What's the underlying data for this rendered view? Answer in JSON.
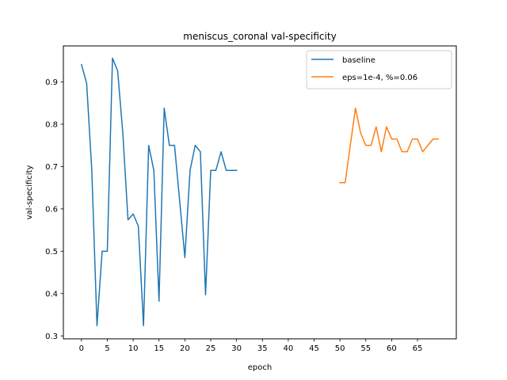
{
  "chart_data": {
    "type": "line",
    "title": "meniscus_coronal val-specificity",
    "xlabel": "epoch",
    "ylabel": "val-specificity",
    "xlim": [
      -3.5,
      72.5
    ],
    "ylim": [
      0.293,
      0.985
    ],
    "xticks": [
      0,
      5,
      10,
      15,
      20,
      25,
      30,
      35,
      40,
      45,
      50,
      55,
      60,
      65
    ],
    "yticks": [
      0.3,
      0.4,
      0.5,
      0.6,
      0.7,
      0.8,
      0.9
    ],
    "legend_position": "upper right",
    "grid": false,
    "series": [
      {
        "name": "baseline",
        "color": "#1f77b4",
        "x": [
          0,
          1,
          2,
          3,
          4,
          5,
          6,
          7,
          8,
          9,
          10,
          11,
          12,
          13,
          14,
          15,
          16,
          17,
          18,
          19,
          20,
          21,
          22,
          23,
          24,
          25,
          26,
          27,
          28,
          29,
          30
        ],
        "y": [
          0.941,
          0.897,
          0.691,
          0.324,
          0.5,
          0.5,
          0.956,
          0.926,
          0.779,
          0.574,
          0.588,
          0.559,
          0.324,
          0.75,
          0.691,
          0.382,
          0.838,
          0.75,
          0.75,
          0.618,
          0.485,
          0.691,
          0.75,
          0.735,
          0.397,
          0.691,
          0.691,
          0.735,
          0.691,
          0.691,
          0.691
        ]
      },
      {
        "name": "eps=1e-4, %=0.06",
        "color": "#ff7f0e",
        "x": [
          50,
          51,
          52,
          53,
          54,
          55,
          56,
          57,
          58,
          59,
          60,
          61,
          62,
          63,
          64,
          65,
          66,
          67,
          68,
          69
        ],
        "y": [
          0.662,
          0.662,
          0.75,
          0.838,
          0.779,
          0.75,
          0.75,
          0.794,
          0.735,
          0.794,
          0.765,
          0.765,
          0.735,
          0.735,
          0.765,
          0.765,
          0.735,
          0.75,
          0.765,
          0.765
        ]
      }
    ]
  }
}
